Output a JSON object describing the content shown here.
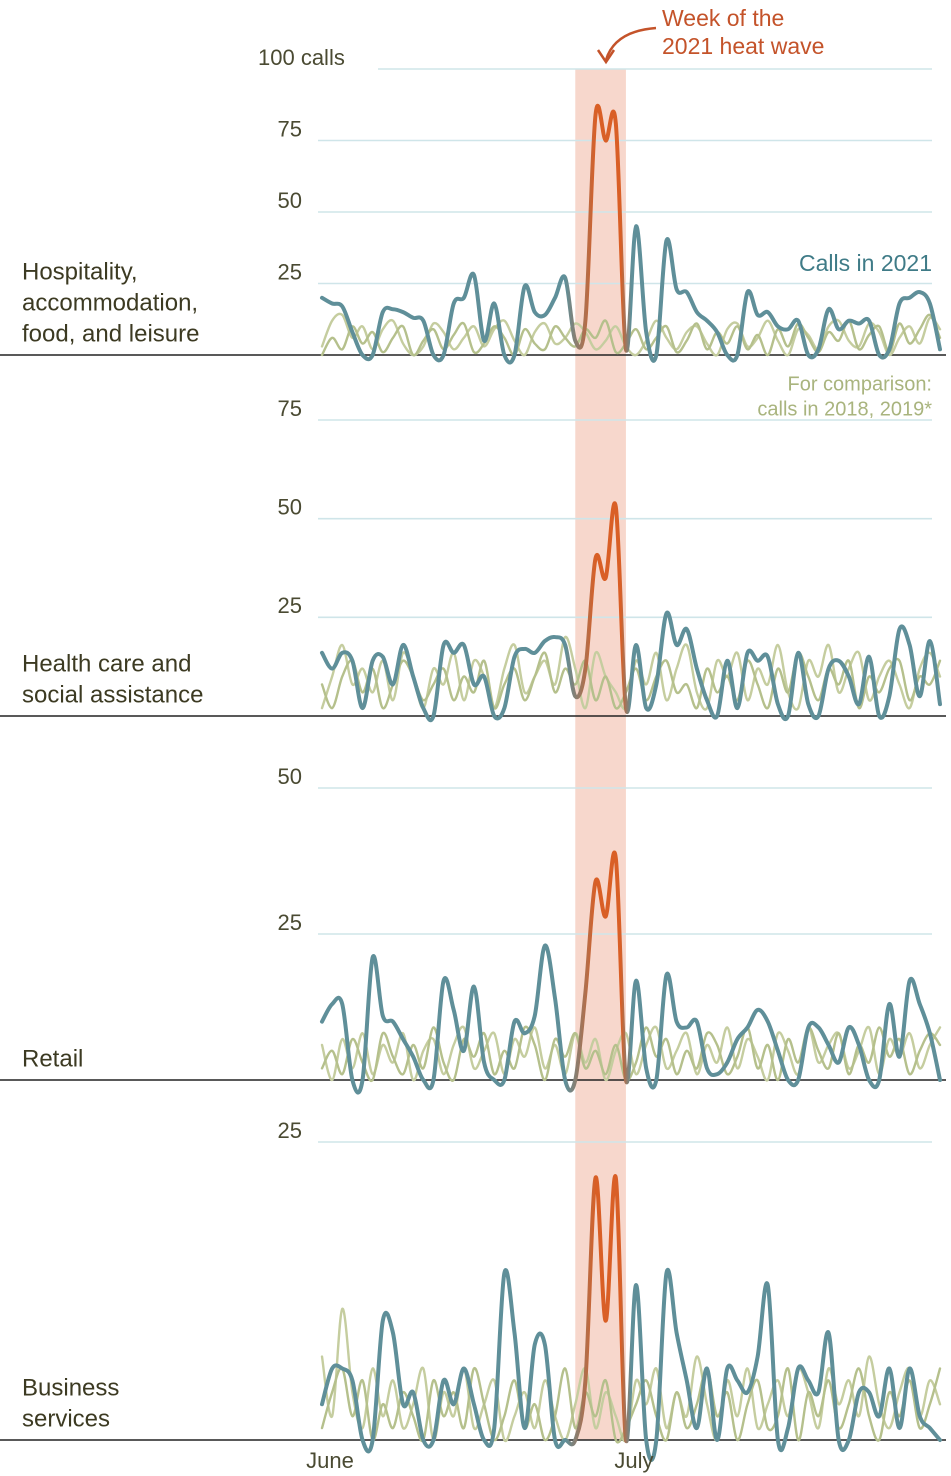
{
  "chart_data": [
    {
      "type": "line",
      "title": [
        "Hospitality,",
        "accommodation,",
        "food, and leisure"
      ],
      "xlim": [
        0,
        61
      ],
      "ylim": [
        0,
        100
      ],
      "yticks": [
        25,
        50,
        75,
        {
          "value": 100,
          "label": "100 calls"
        }
      ],
      "heat_wave": [
        25,
        30
      ],
      "heat_wave_color": "#f6d3c6",
      "highlight_color": "#d95f26",
      "annotations": {
        "heat_wave": [
          "Week of the",
          "2021 heat wave"
        ],
        "calls_2021": "Calls in 2021"
      },
      "series": [
        {
          "color": "#c5cd9f",
          "values": [
            3,
            12,
            14,
            6,
            10,
            2,
            9,
            12,
            4,
            0,
            3,
            11,
            8,
            2,
            6,
            10,
            3,
            9,
            12,
            5,
            0,
            8,
            11,
            4,
            6,
            11,
            8,
            2,
            5,
            10,
            3,
            0,
            5,
            12,
            6,
            2,
            8,
            10,
            4,
            0,
            9,
            11,
            3,
            6,
            12,
            5,
            0,
            9,
            7,
            2,
            10,
            12,
            5,
            3,
            11,
            8,
            0,
            6,
            10,
            4,
            13,
            9
          ]
        },
        {
          "color": "#b5c08c",
          "values": [
            0,
            6,
            2,
            10,
            4,
            8,
            1,
            6,
            10,
            0,
            5,
            9,
            2,
            7,
            11,
            1,
            4,
            10,
            6,
            0,
            9,
            4,
            2,
            10,
            6,
            3,
            9,
            6,
            12,
            1,
            4,
            9,
            2,
            6,
            10,
            1,
            5,
            11,
            2,
            8,
            4,
            10,
            2,
            7,
            0,
            9,
            3,
            11,
            6,
            1,
            8,
            5,
            12,
            2,
            7,
            10,
            1,
            11,
            4,
            9,
            14,
            6
          ]
        },
        {
          "color": "#5f8f99",
          "values": [
            20,
            18,
            17,
            8,
            0,
            0,
            15,
            16,
            15,
            13,
            12,
            0,
            0,
            18,
            20,
            28,
            5,
            18,
            0,
            0,
            24,
            15,
            14,
            20,
            27,
            5,
            12,
            84,
            75,
            81,
            2,
            45,
            8,
            0,
            40,
            23,
            22,
            15,
            12,
            8,
            0,
            0,
            22,
            14,
            15,
            10,
            9,
            12,
            0,
            2,
            16,
            9,
            12,
            11,
            12,
            0,
            2,
            18,
            20,
            22,
            18,
            2
          ]
        }
      ]
    },
    {
      "type": "line",
      "title": [
        "Health care and",
        "social assistance"
      ],
      "xlim": [
        0,
        61
      ],
      "ylim": [
        0,
        75
      ],
      "yticks": [
        25,
        50,
        75
      ],
      "annotations": {
        "comparison": [
          "For comparison:",
          "calls in 2018, 2019*"
        ]
      },
      "series": [
        {
          "color": "#c5cd9f",
          "values": [
            2,
            10,
            18,
            8,
            12,
            6,
            14,
            4,
            16,
            10,
            2,
            12,
            8,
            16,
            4,
            14,
            10,
            2,
            12,
            18,
            6,
            10,
            14,
            8,
            20,
            12,
            2,
            16,
            10,
            6,
            2,
            14,
            8,
            16,
            4,
            12,
            18,
            6,
            2,
            14,
            10,
            16,
            4,
            12,
            8,
            18,
            6,
            2,
            14,
            10,
            18,
            6,
            12,
            16,
            4,
            10,
            14,
            8,
            2,
            12,
            16,
            10
          ]
        },
        {
          "color": "#b5c08c",
          "values": [
            8,
            2,
            10,
            14,
            6,
            12,
            2,
            8,
            14,
            10,
            4,
            8,
            12,
            4,
            10,
            6,
            14,
            2,
            8,
            12,
            4,
            10,
            16,
            6,
            12,
            8,
            14,
            4,
            10,
            2,
            6,
            12,
            4,
            10,
            14,
            6,
            8,
            2,
            12,
            6,
            10,
            4,
            14,
            8,
            2,
            12,
            6,
            16,
            10,
            4,
            12,
            8,
            14,
            2,
            10,
            6,
            12,
            14,
            4,
            10,
            8,
            14
          ]
        },
        {
          "color": "#5f8f99",
          "values": [
            16,
            12,
            16,
            14,
            2,
            14,
            15,
            8,
            18,
            10,
            2,
            0,
            18,
            16,
            18,
            8,
            10,
            0,
            2,
            15,
            17,
            16,
            19,
            20,
            18,
            5,
            12,
            40,
            35,
            53,
            2,
            18,
            2,
            8,
            26,
            18,
            22,
            12,
            4,
            0,
            14,
            2,
            16,
            14,
            15,
            3,
            0,
            16,
            3,
            0,
            12,
            14,
            10,
            3,
            15,
            0,
            5,
            22,
            18,
            5,
            19,
            3
          ]
        }
      ]
    },
    {
      "type": "line",
      "title": [
        "Retail"
      ],
      "xlim": [
        0,
        61
      ],
      "ylim": [
        0,
        50
      ],
      "yticks": [
        25,
        50
      ],
      "series": [
        {
          "color": "#c5cd9f",
          "values": [
            6,
            0,
            7,
            2,
            8,
            1,
            6,
            3,
            8,
            0,
            5,
            7,
            1,
            6,
            9,
            2,
            5,
            8,
            1,
            7,
            4,
            9,
            2,
            6,
            1,
            8,
            3,
            7,
            0,
            5,
            8,
            1,
            6,
            9,
            2,
            5,
            8,
            1,
            6,
            3,
            9,
            2,
            7,
            4,
            0,
            8,
            5,
            1,
            9,
            3,
            6,
            8,
            2,
            5,
            9,
            1,
            7,
            4,
            8,
            2,
            6,
            9
          ]
        },
        {
          "color": "#b5c08c",
          "values": [
            2,
            5,
            1,
            7,
            3,
            0,
            8,
            4,
            1,
            6,
            2,
            9,
            3,
            0,
            7,
            4,
            8,
            1,
            5,
            2,
            9,
            6,
            0,
            7,
            4,
            8,
            2,
            5,
            1,
            6,
            0,
            3,
            9,
            4,
            7,
            1,
            5,
            2,
            8,
            6,
            1,
            4,
            9,
            2,
            6,
            0,
            7,
            3,
            9,
            5,
            2,
            8,
            1,
            6,
            3,
            9,
            4,
            7,
            1,
            5,
            8,
            6
          ]
        },
        {
          "color": "#5f8f99",
          "values": [
            10,
            13,
            13,
            0,
            0,
            21,
            11,
            10,
            7,
            4,
            0,
            0,
            17,
            12,
            5,
            16,
            3,
            0,
            0,
            10,
            8,
            11,
            23,
            14,
            0,
            0,
            15,
            34,
            28,
            38,
            0,
            17,
            2,
            0,
            18,
            10,
            9,
            10,
            2,
            1,
            3,
            7,
            9,
            12,
            10,
            5,
            0,
            0,
            9,
            9,
            6,
            3,
            9,
            6,
            0,
            0,
            13,
            4,
            17,
            13,
            8,
            0
          ]
        }
      ]
    },
    {
      "type": "line",
      "title": [
        "Business",
        "services"
      ],
      "xlim": [
        0,
        61
      ],
      "ylim": [
        0,
        25
      ],
      "yticks": [
        25
      ],
      "xticks": [
        {
          "value": 0,
          "label": "June"
        },
        {
          "value": 30,
          "label": "July"
        }
      ],
      "series": [
        {
          "color": "#c5cd9f",
          "values": [
            7,
            2,
            11,
            4,
            1,
            6,
            2,
            5,
            1,
            3,
            6,
            0,
            4,
            2,
            6,
            1,
            3,
            5,
            0,
            2,
            4,
            1,
            5,
            2,
            0,
            3,
            6,
            1,
            4,
            2,
            0,
            5,
            3,
            6,
            1,
            4,
            2,
            7,
            3,
            0,
            5,
            2,
            6,
            1,
            3,
            5,
            2,
            6,
            4,
            1,
            6,
            3,
            5,
            2,
            7,
            3,
            1,
            4,
            6,
            2,
            5,
            3
          ]
        },
        {
          "color": "#b5c08c",
          "values": [
            1,
            4,
            6,
            2,
            5,
            0,
            3,
            1,
            4,
            2,
            0,
            5,
            2,
            4,
            1,
            6,
            3,
            0,
            2,
            5,
            1,
            3,
            0,
            2,
            6,
            1,
            4,
            2,
            5,
            0,
            1,
            3,
            5,
            2,
            0,
            4,
            1,
            3,
            6,
            2,
            4,
            0,
            3,
            5,
            1,
            2,
            6,
            0,
            4,
            2,
            5,
            1,
            3,
            6,
            2,
            0,
            4,
            2,
            5,
            1,
            3,
            6
          ]
        },
        {
          "color": "#5f8f99",
          "values": [
            3,
            6,
            6,
            5,
            0,
            0,
            10,
            9,
            3,
            4,
            0,
            0,
            5,
            3,
            6,
            3,
            0,
            1,
            14,
            9,
            1,
            8,
            8,
            0,
            0,
            0,
            5,
            22,
            10,
            22,
            0,
            13,
            0,
            0,
            14,
            9,
            5,
            1,
            6,
            0,
            6,
            5,
            4,
            7,
            13,
            0,
            1,
            6,
            5,
            4,
            9,
            0,
            0,
            4,
            4,
            2,
            6,
            1,
            6,
            2,
            1,
            0
          ]
        }
      ]
    }
  ]
}
